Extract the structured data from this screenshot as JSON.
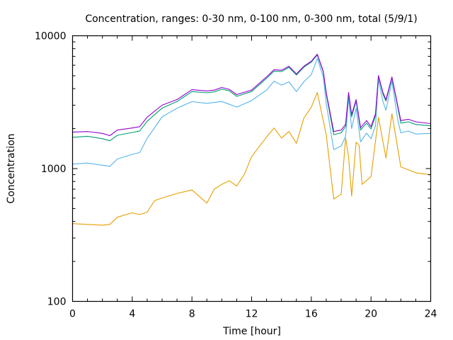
{
  "chart_data": {
    "type": "line",
    "title": "Concentration, ranges: 0-30 nm, 0-100 nm, 0-300 nm, total (5/9/1)",
    "xlabel": "Time [hour]",
    "ylabel": "Concentration",
    "xlim": [
      0,
      24
    ],
    "ylim": [
      100,
      10000
    ],
    "yscale": "log",
    "grid": false,
    "legend": "none",
    "xticks": [
      "0",
      "4",
      "8",
      "12",
      "16",
      "20",
      "24"
    ],
    "yticks": [
      "100",
      "1000",
      "10000"
    ],
    "series": [
      {
        "name": "total",
        "color": "#9400d3",
        "x": [
          0,
          1,
          2,
          2.5,
          3,
          4,
          4.5,
          5,
          6,
          7,
          8,
          9,
          9.5,
          10,
          10.5,
          11,
          12,
          13,
          13.5,
          14,
          14.5,
          15,
          15.5,
          16,
          16.4,
          16.8,
          17,
          17.5,
          18,
          18.3,
          18.5,
          18.7,
          19,
          19.3,
          19.7,
          20,
          20.3,
          20.5,
          20.8,
          21,
          21.4,
          21.8,
          22,
          22.5,
          23,
          24
        ],
        "y": [
          1880,
          1900,
          1840,
          1770,
          1950,
          2020,
          2070,
          2440,
          3000,
          3310,
          3930,
          3840,
          3900,
          4080,
          3950,
          3610,
          3900,
          4900,
          5550,
          5500,
          5900,
          5160,
          5900,
          6430,
          7270,
          5420,
          3740,
          1900,
          1950,
          2160,
          3740,
          2550,
          3310,
          2030,
          2300,
          2070,
          2590,
          5020,
          3740,
          3300,
          4900,
          2950,
          2300,
          2350,
          2250,
          2180
        ]
      },
      {
        "name": "0-300 nm",
        "color": "#009e73",
        "x": [
          0,
          1,
          2,
          2.5,
          3,
          4,
          4.5,
          5,
          6,
          7,
          8,
          9,
          9.5,
          10,
          10.5,
          11,
          12,
          13,
          13.5,
          14,
          14.5,
          15,
          15.5,
          16,
          16.4,
          16.8,
          17,
          17.5,
          18,
          18.3,
          18.5,
          18.7,
          19,
          19.3,
          19.7,
          20,
          20.3,
          20.5,
          20.8,
          21,
          21.4,
          21.8,
          22,
          22.5,
          23,
          24
        ],
        "y": [
          1720,
          1750,
          1680,
          1620,
          1780,
          1870,
          1920,
          2270,
          2850,
          3200,
          3800,
          3720,
          3780,
          3960,
          3850,
          3500,
          3800,
          4780,
          5420,
          5380,
          5780,
          5060,
          5800,
          6330,
          7150,
          5350,
          3650,
          1800,
          1860,
          2080,
          3650,
          2450,
          3220,
          1950,
          2200,
          1990,
          2500,
          4950,
          3650,
          3220,
          4820,
          2870,
          2200,
          2250,
          2150,
          2100
        ]
      },
      {
        "name": "0-100 nm",
        "color": "#56b4e9",
        "x": [
          0,
          1,
          2,
          2.5,
          3,
          4,
          4.5,
          5,
          6,
          7,
          8,
          9,
          9.5,
          10,
          10.5,
          11,
          12,
          13,
          13.5,
          14,
          14.5,
          15,
          15.5,
          16,
          16.4,
          16.8,
          17,
          17.5,
          18,
          18.3,
          18.5,
          18.7,
          19,
          19.3,
          19.7,
          20,
          20.3,
          20.5,
          20.8,
          21,
          21.4,
          21.8,
          22,
          22.5,
          23,
          24
        ],
        "y": [
          1080,
          1100,
          1060,
          1040,
          1180,
          1280,
          1320,
          1690,
          2450,
          2850,
          3190,
          3100,
          3150,
          3200,
          3050,
          2900,
          3250,
          3900,
          4550,
          4250,
          4500,
          3800,
          4500,
          5100,
          6750,
          4900,
          3100,
          1390,
          1480,
          1750,
          3400,
          2000,
          2850,
          1590,
          1850,
          1680,
          2100,
          4700,
          3200,
          2750,
          4550,
          2300,
          1860,
          1920,
          1820,
          1840
        ]
      },
      {
        "name": "0-30 nm",
        "color": "#e69f00",
        "x": [
          0,
          1,
          2,
          2.5,
          3,
          4,
          4.5,
          5,
          5.5,
          6,
          7,
          8,
          9,
          9.5,
          10,
          10.5,
          11,
          11.5,
          12,
          13,
          13.5,
          14,
          14.5,
          15,
          15.5,
          16,
          16.4,
          17,
          17.5,
          18,
          18.3,
          18.5,
          18.7,
          19,
          19.2,
          19.4,
          20,
          20.5,
          21,
          21.4,
          22,
          23,
          24
        ],
        "y": [
          385,
          380,
          375,
          380,
          430,
          465,
          450,
          470,
          575,
          600,
          650,
          690,
          550,
          700,
          760,
          810,
          740,
          900,
          1230,
          1730,
          2020,
          1700,
          1900,
          1550,
          2400,
          2900,
          3740,
          1800,
          590,
          640,
          1700,
          1220,
          620,
          1580,
          1500,
          760,
          870,
          2430,
          1200,
          2590,
          1030,
          930,
          898
        ]
      }
    ]
  }
}
